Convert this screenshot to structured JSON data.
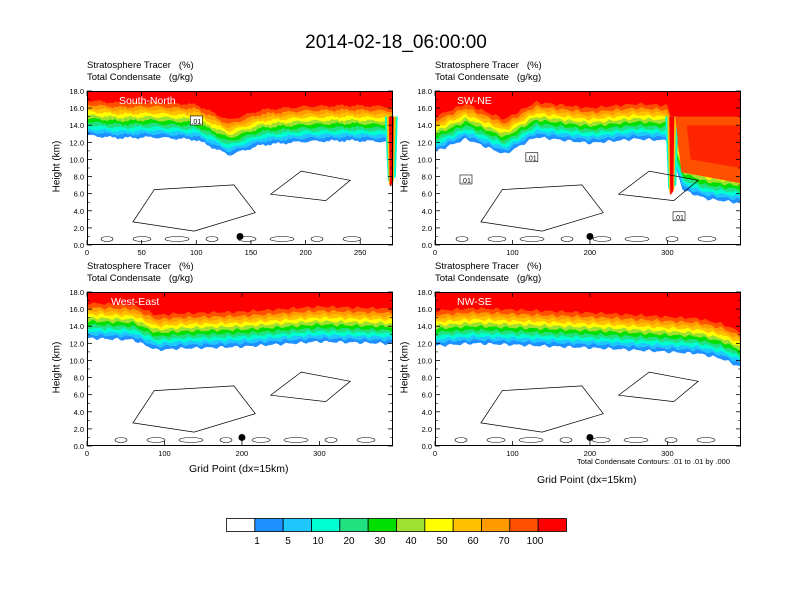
{
  "title": "2014-02-18_06:00:00",
  "common": {
    "label_line1": "Stratosphere Tracer   (%)",
    "label_line2": "Total Condensate   (g/kg)",
    "ylabel": "Height (km)",
    "xlabel": "Grid Point (dx=15km)",
    "y_ticks": [
      "0.0",
      "2.0",
      "4.0",
      "6.0",
      "8.0",
      "10.0",
      "12.0",
      "14.0",
      "16.0",
      "18.0"
    ]
  },
  "contour_note": "Total Condensate Contours: .01 to .01 by .000",
  "colorbar": {
    "colors": [
      "#ffffff",
      "#1e90ff",
      "#1ec8ff",
      "#00ffd0",
      "#20e080",
      "#00e000",
      "#a0e030",
      "#ffff00",
      "#ffc000",
      "#ff9a00",
      "#ff5000",
      "#ff0000"
    ],
    "labels": [
      "1",
      "5",
      "10",
      "20",
      "30",
      "40",
      "50",
      "60",
      "70",
      "100"
    ]
  },
  "chart_data": [
    {
      "type": "heatmap",
      "name": "South-North",
      "xlim": [
        0,
        280
      ],
      "ylim": [
        0,
        18
      ],
      "x_ticks": [
        0,
        50,
        100,
        150,
        200,
        250
      ],
      "y_ticks": [
        0,
        2,
        4,
        6,
        8,
        10,
        12,
        14,
        16,
        18
      ],
      "tropopause_km": [
        [
          0,
          15.4
        ],
        [
          30,
          15.1
        ],
        [
          60,
          15.2
        ],
        [
          100,
          14.9
        ],
        [
          130,
          13.1
        ],
        [
          160,
          14.3
        ],
        [
          200,
          14.7
        ],
        [
          240,
          14.8
        ],
        [
          270,
          14.7
        ],
        [
          280,
          14.6
        ]
      ],
      "intrusions": [
        {
          "x": 278,
          "bottom_km": 7.5
        }
      ],
      "contour_labels": [
        {
          "x": 100,
          "y_km": 14.5,
          "text": ".01"
        }
      ],
      "marker": {
        "x": 140,
        "y_km": 1.0
      }
    },
    {
      "type": "heatmap",
      "name": "SW-NE",
      "xlim": [
        0,
        395
      ],
      "ylim": [
        0,
        18
      ],
      "x_ticks": [
        0,
        100,
        200,
        300
      ],
      "y_ticks": [
        0,
        2,
        4,
        6,
        8,
        10,
        12,
        14,
        16,
        18
      ],
      "tropopause_km": [
        [
          0,
          13.5
        ],
        [
          40,
          15.0
        ],
        [
          90,
          13.2
        ],
        [
          130,
          15.2
        ],
        [
          200,
          14.5
        ],
        [
          260,
          15.0
        ],
        [
          300,
          14.8
        ],
        [
          320,
          9.0
        ],
        [
          350,
          8.0
        ],
        [
          395,
          7.5
        ]
      ],
      "intrusions": [
        {
          "x": 305,
          "bottom_km": 6.5
        }
      ],
      "contour_labels": [
        {
          "x": 125,
          "y_km": 10.2,
          "text": ".01"
        },
        {
          "x": 40,
          "y_km": 7.6,
          "text": ".01"
        },
        {
          "x": 315,
          "y_km": 3.3,
          "text": ".01"
        }
      ],
      "marker": {
        "x": 200,
        "y_km": 1.0
      }
    },
    {
      "type": "heatmap",
      "name": "West-East",
      "xlim": [
        0,
        395
      ],
      "ylim": [
        0,
        18
      ],
      "x_ticks": [
        0,
        100,
        200,
        300
      ],
      "y_ticks": [
        0,
        2,
        4,
        6,
        8,
        10,
        12,
        14,
        16,
        18
      ],
      "tropopause_km": [
        [
          0,
          15.2
        ],
        [
          60,
          15.0
        ],
        [
          90,
          13.8
        ],
        [
          120,
          14.0
        ],
        [
          200,
          14.2
        ],
        [
          300,
          14.8
        ],
        [
          380,
          14.6
        ],
        [
          395,
          14.5
        ]
      ],
      "intrusions": [],
      "contour_labels": [],
      "marker": {
        "x": 200,
        "y_km": 1.0
      }
    },
    {
      "type": "heatmap",
      "name": "NW-SE",
      "xlim": [
        0,
        395
      ],
      "ylim": [
        0,
        18
      ],
      "x_ticks": [
        0,
        100,
        200,
        300
      ],
      "y_ticks": [
        0,
        2,
        4,
        6,
        8,
        10,
        12,
        14,
        16,
        18
      ],
      "tropopause_km": [
        [
          0,
          14.3
        ],
        [
          50,
          14.6
        ],
        [
          110,
          14.4
        ],
        [
          220,
          14.0
        ],
        [
          300,
          13.6
        ],
        [
          340,
          13.4
        ],
        [
          370,
          12.8
        ],
        [
          395,
          11.8
        ]
      ],
      "intrusions": [],
      "contour_labels": [],
      "marker": {
        "x": 200,
        "y_km": 1.0
      }
    }
  ]
}
